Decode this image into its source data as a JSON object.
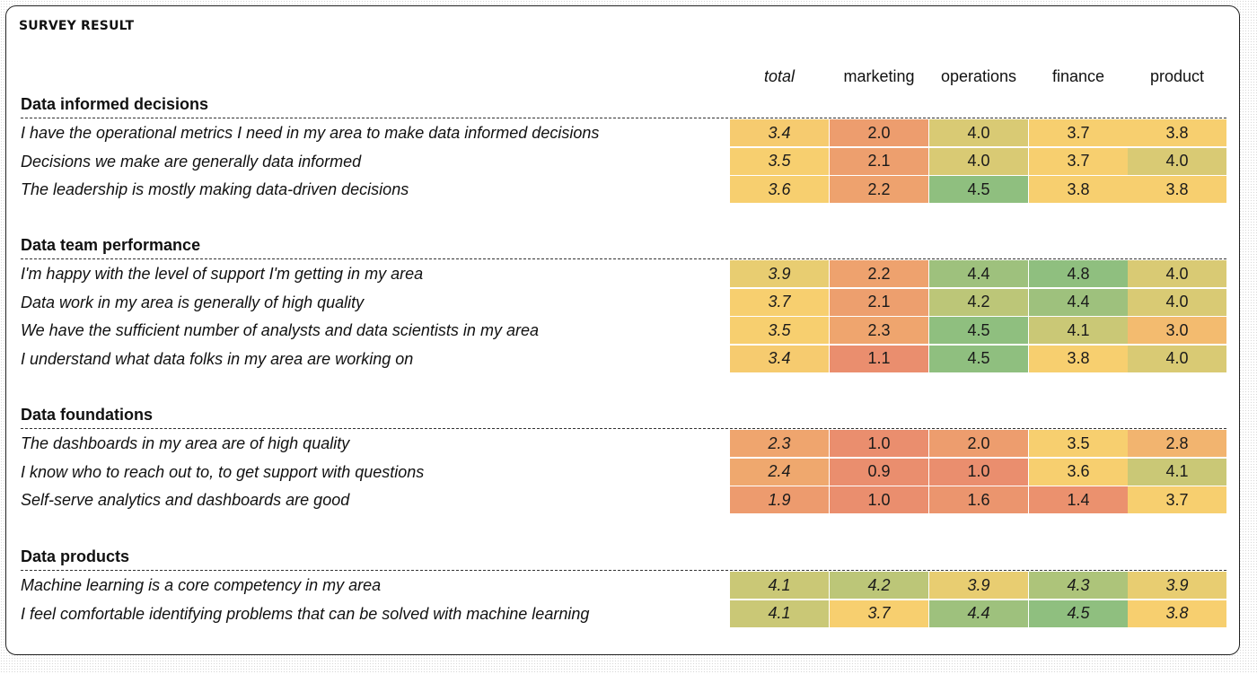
{
  "title": "SURVEY RESULT",
  "chart_data": {
    "type": "heatmap",
    "columns": [
      "total",
      "marketing",
      "operations",
      "finance",
      "product"
    ],
    "sections": [
      {
        "title": "Data informed decisions",
        "rows": [
          {
            "label": "I have the operational metrics I need in my area to make data informed decisions",
            "values": [
              "3.4",
              "2.0",
              "4.0",
              "3.7",
              "3.8"
            ]
          },
          {
            "label": "Decisions we make are generally data informed",
            "values": [
              "3.5",
              "2.1",
              "4.0",
              "3.7",
              "4.0"
            ]
          },
          {
            "label": "The leadership is mostly making data-driven decisions",
            "values": [
              "3.6",
              "2.2",
              "4.5",
              "3.8",
              "3.8"
            ]
          }
        ]
      },
      {
        "title": "Data team performance",
        "rows": [
          {
            "label": "I'm happy with the level of support I'm getting in my area",
            "values": [
              "3.9",
              "2.2",
              "4.4",
              "4.8",
              "4.0"
            ]
          },
          {
            "label": "Data work in my area is generally of high quality",
            "values": [
              "3.7",
              "2.1",
              "4.2",
              "4.4",
              "4.0"
            ]
          },
          {
            "label": "We have the sufficient number of analysts and data scientists in my area",
            "values": [
              "3.5",
              "2.3",
              "4.5",
              "4.1",
              "3.0"
            ]
          },
          {
            "label": "I understand what data folks in my area are working on",
            "values": [
              "3.4",
              "1.1",
              "4.5",
              "3.8",
              "4.0"
            ]
          }
        ]
      },
      {
        "title": "Data foundations",
        "rows": [
          {
            "label": "The dashboards in my area are of high quality",
            "values": [
              "2.3",
              "1.0",
              "2.0",
              "3.5",
              "2.8"
            ]
          },
          {
            "label": "I know who to reach out to, to get support with questions",
            "values": [
              "2.4",
              "0.9",
              "1.0",
              "3.6",
              "4.1"
            ]
          },
          {
            "label": "Self-serve analytics and dashboards are good",
            "values": [
              "1.9",
              "1.0",
              "1.6",
              "1.4",
              "3.7"
            ]
          }
        ]
      },
      {
        "title": "Data products",
        "rows": [
          {
            "label": "Machine learning is a core competency in my area",
            "values": [
              "4.1",
              "4.2",
              "3.9",
              "4.3",
              "3.9"
            ]
          },
          {
            "label": "I feel comfortable identifying problems that can be solved with machine learning",
            "values": [
              "4.1",
              "3.7",
              "4.4",
              "4.5",
              "3.8"
            ]
          }
        ]
      }
    ],
    "color_scale": {
      "low": "#ea8e6e",
      "mid": "#f7cf6f",
      "high": "#8fbf7f"
    }
  }
}
